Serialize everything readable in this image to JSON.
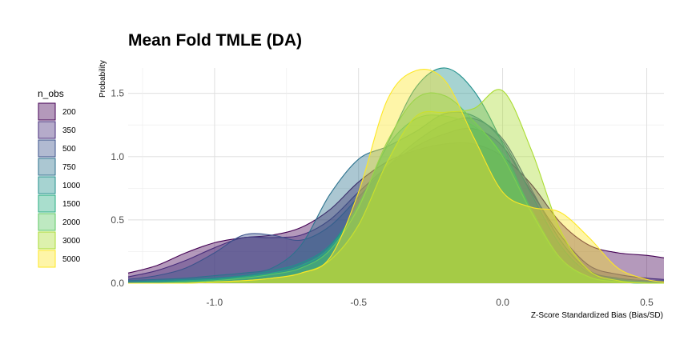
{
  "chart_data": {
    "type": "area",
    "subtype": "density",
    "title": "Mean Fold TMLE (DA)",
    "xlabel": "Z-Score Standardized Bias (Bias/SD)",
    "ylabel": "Probability",
    "xlim": [
      -1.3,
      0.56
    ],
    "ylim": [
      0,
      1.7
    ],
    "x_ticks": [
      -1.0,
      -0.5,
      0.0,
      0.5
    ],
    "x_tick_labels": [
      "-1.0",
      "-0.5",
      "0.0",
      "0.5"
    ],
    "y_ticks": [
      0.0,
      0.5,
      1.0,
      1.5
    ],
    "y_tick_labels": [
      "0.0",
      "0.5",
      "1.0",
      "1.5"
    ],
    "grid": true,
    "legend_title": "n_obs",
    "legend_position": "left",
    "fill_opacity": 0.4,
    "series": [
      {
        "name": "200",
        "color": "#440154",
        "x": [
          -1.3,
          -1.2,
          -1.1,
          -1.0,
          -0.9,
          -0.8,
          -0.7,
          -0.6,
          -0.5,
          -0.4,
          -0.3,
          -0.2,
          -0.1,
          0.0,
          0.1,
          0.2,
          0.3,
          0.4,
          0.5,
          0.56
        ],
        "y": [
          0.08,
          0.14,
          0.24,
          0.32,
          0.36,
          0.38,
          0.44,
          0.58,
          0.8,
          0.96,
          1.05,
          1.1,
          1.1,
          1.0,
          0.78,
          0.48,
          0.3,
          0.24,
          0.22,
          0.2
        ]
      },
      {
        "name": "350",
        "color": "#472D7B",
        "x": [
          -1.3,
          -1.2,
          -1.1,
          -1.0,
          -0.9,
          -0.8,
          -0.7,
          -0.6,
          -0.5,
          -0.4,
          -0.3,
          -0.2,
          -0.1,
          0.0,
          0.1,
          0.2,
          0.3,
          0.4,
          0.5,
          0.56
        ],
        "y": [
          0.05,
          0.1,
          0.18,
          0.28,
          0.36,
          0.36,
          0.38,
          0.5,
          0.72,
          0.92,
          1.08,
          1.18,
          1.22,
          1.08,
          0.72,
          0.38,
          0.14,
          0.07,
          0.04,
          0.03
        ]
      },
      {
        "name": "500",
        "color": "#3B528B",
        "x": [
          -1.3,
          -1.2,
          -1.1,
          -1.0,
          -0.9,
          -0.8,
          -0.7,
          -0.6,
          -0.5,
          -0.4,
          -0.3,
          -0.2,
          -0.1,
          0.0,
          0.1,
          0.2,
          0.3,
          0.4,
          0.5,
          0.56
        ],
        "y": [
          0.03,
          0.06,
          0.12,
          0.24,
          0.38,
          0.38,
          0.34,
          0.45,
          0.68,
          0.92,
          1.12,
          1.26,
          1.3,
          1.14,
          0.74,
          0.34,
          0.1,
          0.04,
          0.02,
          0.02
        ]
      },
      {
        "name": "750",
        "color": "#2C728E",
        "x": [
          -1.3,
          -1.2,
          -1.1,
          -1.0,
          -0.9,
          -0.8,
          -0.7,
          -0.6,
          -0.5,
          -0.4,
          -0.3,
          -0.2,
          -0.1,
          0.0,
          0.1,
          0.2,
          0.3,
          0.4,
          0.5,
          0.56
        ],
        "y": [
          0.02,
          0.03,
          0.04,
          0.06,
          0.08,
          0.12,
          0.3,
          0.7,
          0.98,
          1.08,
          1.2,
          1.34,
          1.32,
          1.12,
          0.7,
          0.3,
          0.08,
          0.03,
          0.01,
          0.01
        ]
      },
      {
        "name": "1000",
        "color": "#21908C",
        "x": [
          -1.3,
          -1.2,
          -1.1,
          -1.0,
          -0.9,
          -0.8,
          -0.7,
          -0.6,
          -0.5,
          -0.4,
          -0.3,
          -0.2,
          -0.1,
          0.0,
          0.1,
          0.2,
          0.3,
          0.4,
          0.5,
          0.56
        ],
        "y": [
          0.01,
          0.02,
          0.03,
          0.04,
          0.06,
          0.1,
          0.16,
          0.3,
          0.62,
          1.1,
          1.55,
          1.7,
          1.52,
          1.1,
          0.55,
          0.18,
          0.05,
          0.02,
          0.01,
          0.0
        ]
      },
      {
        "name": "1500",
        "color": "#27AD81",
        "x": [
          -1.3,
          -1.2,
          -1.1,
          -1.0,
          -0.9,
          -0.8,
          -0.7,
          -0.6,
          -0.5,
          -0.4,
          -0.3,
          -0.2,
          -0.1,
          0.0,
          0.1,
          0.2,
          0.3,
          0.4,
          0.5,
          0.56
        ],
        "y": [
          0.0,
          0.01,
          0.02,
          0.03,
          0.05,
          0.08,
          0.14,
          0.28,
          0.62,
          1.08,
          1.3,
          1.32,
          1.24,
          1.02,
          0.58,
          0.2,
          0.05,
          0.01,
          0.0,
          0.0
        ]
      },
      {
        "name": "2000",
        "color": "#5DC863",
        "x": [
          -1.3,
          -1.2,
          -1.1,
          -1.0,
          -0.9,
          -0.8,
          -0.7,
          -0.6,
          -0.5,
          -0.4,
          -0.3,
          -0.2,
          -0.1,
          0.0,
          0.1,
          0.2,
          0.3,
          0.4,
          0.5,
          0.56
        ],
        "y": [
          0.0,
          0.0,
          0.01,
          0.02,
          0.04,
          0.07,
          0.12,
          0.26,
          0.6,
          1.12,
          1.46,
          1.48,
          1.28,
          1.0,
          0.56,
          0.2,
          0.05,
          0.01,
          0.0,
          0.0
        ]
      },
      {
        "name": "3000",
        "color": "#AADC32",
        "x": [
          -1.3,
          -1.2,
          -1.1,
          -1.0,
          -0.9,
          -0.8,
          -0.7,
          -0.6,
          -0.5,
          -0.4,
          -0.3,
          -0.2,
          -0.1,
          0.0,
          0.1,
          0.2,
          0.3,
          0.4,
          0.5,
          0.56
        ],
        "y": [
          0.0,
          0.0,
          0.0,
          0.01,
          0.02,
          0.04,
          0.08,
          0.18,
          0.46,
          0.96,
          1.32,
          1.35,
          1.38,
          1.52,
          1.05,
          0.42,
          0.1,
          0.02,
          0.0,
          0.0
        ]
      },
      {
        "name": "5000",
        "color": "#FDE725",
        "x": [
          -1.3,
          -1.2,
          -1.1,
          -1.0,
          -0.9,
          -0.8,
          -0.7,
          -0.6,
          -0.5,
          -0.4,
          -0.3,
          -0.2,
          -0.1,
          0.0,
          0.1,
          0.2,
          0.3,
          0.4,
          0.5,
          0.56
        ],
        "y": [
          0.0,
          0.0,
          0.0,
          0.01,
          0.02,
          0.04,
          0.08,
          0.2,
          0.72,
          1.45,
          1.68,
          1.6,
          1.15,
          0.72,
          0.6,
          0.56,
          0.36,
          0.12,
          0.03,
          0.01
        ]
      }
    ]
  }
}
